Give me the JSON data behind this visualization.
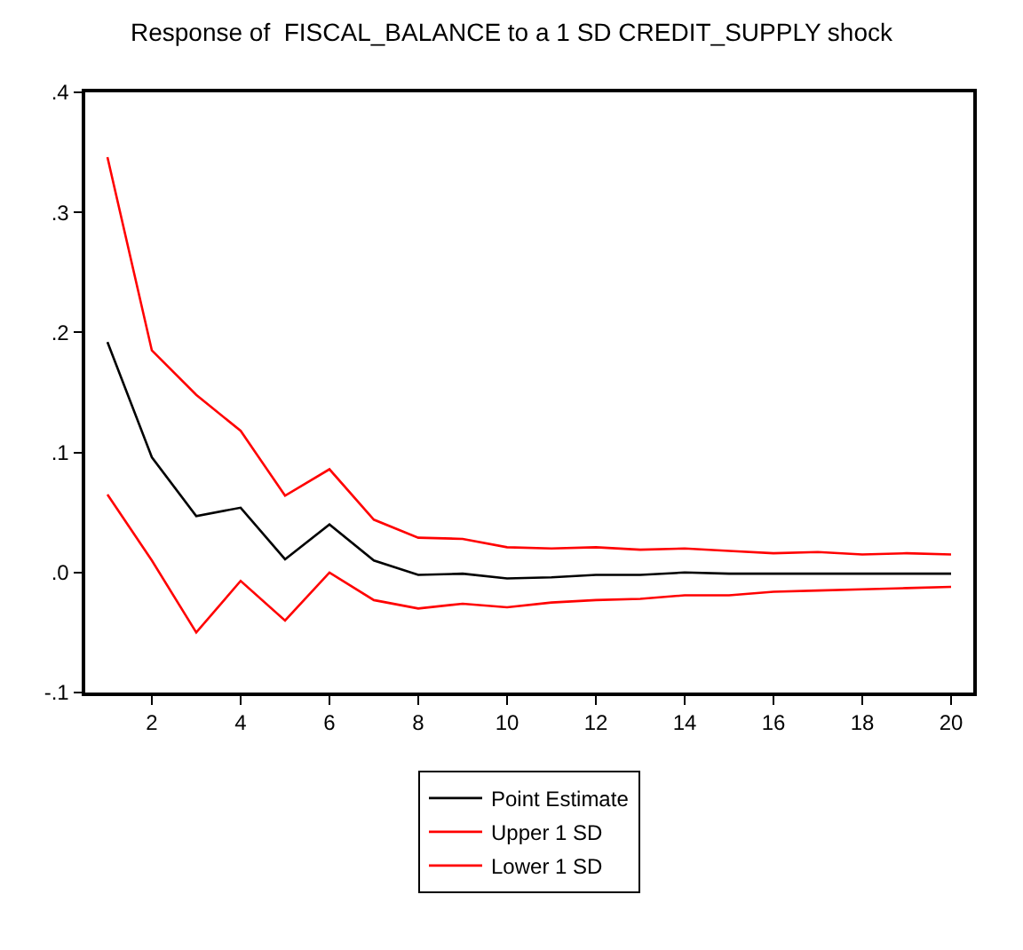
{
  "chart_data": {
    "type": "line",
    "title": "Response of  FISCAL_BALANCE to a 1 SD CREDIT_SUPPLY shock",
    "categories": [
      null,
      "2",
      null,
      "4",
      null,
      "6",
      null,
      "8",
      null,
      "10",
      null,
      "12",
      null,
      "14",
      null,
      "16",
      null,
      "18",
      null,
      "20"
    ],
    "series": [
      {
        "name": "Point Estimate",
        "color": "#000000",
        "values": [
          0.192,
          0.096,
          0.047,
          0.054,
          0.011,
          0.04,
          0.01,
          -0.002,
          -0.001,
          -0.005,
          -0.004,
          -0.002,
          -0.002,
          0.0,
          -0.001,
          -0.001,
          -0.001,
          -0.001,
          -0.001,
          -0.001
        ]
      },
      {
        "name": "Upper 1 SD",
        "color": "#ff0000",
        "values": [
          0.346,
          0.185,
          0.148,
          0.118,
          0.064,
          0.086,
          0.044,
          0.029,
          0.028,
          0.021,
          0.02,
          0.021,
          0.019,
          0.02,
          0.018,
          0.016,
          0.017,
          0.015,
          0.016,
          0.015
        ]
      },
      {
        "name": "Lower 1 SD",
        "color": "#ff0000",
        "values": [
          0.065,
          0.01,
          -0.05,
          -0.007,
          -0.04,
          0.0,
          -0.023,
          -0.03,
          -0.026,
          -0.029,
          -0.025,
          -0.023,
          -0.022,
          -0.019,
          -0.019,
          -0.016,
          -0.015,
          -0.014,
          -0.013,
          -0.012
        ]
      }
    ],
    "ylim": [
      -0.1,
      0.4
    ],
    "yticks": [
      {
        "value": -0.1,
        "label": "-.1"
      },
      {
        "value": 0,
        "label": ".0"
      },
      {
        "value": 0.1,
        "label": ".1"
      },
      {
        "value": 0.2,
        "label": ".2"
      },
      {
        "value": 0.3,
        "label": ".3"
      },
      {
        "value": 0.4,
        "label": ".4"
      }
    ],
    "grid": false,
    "legend": "bottom",
    "marker": "none",
    "line_style": "solid"
  }
}
